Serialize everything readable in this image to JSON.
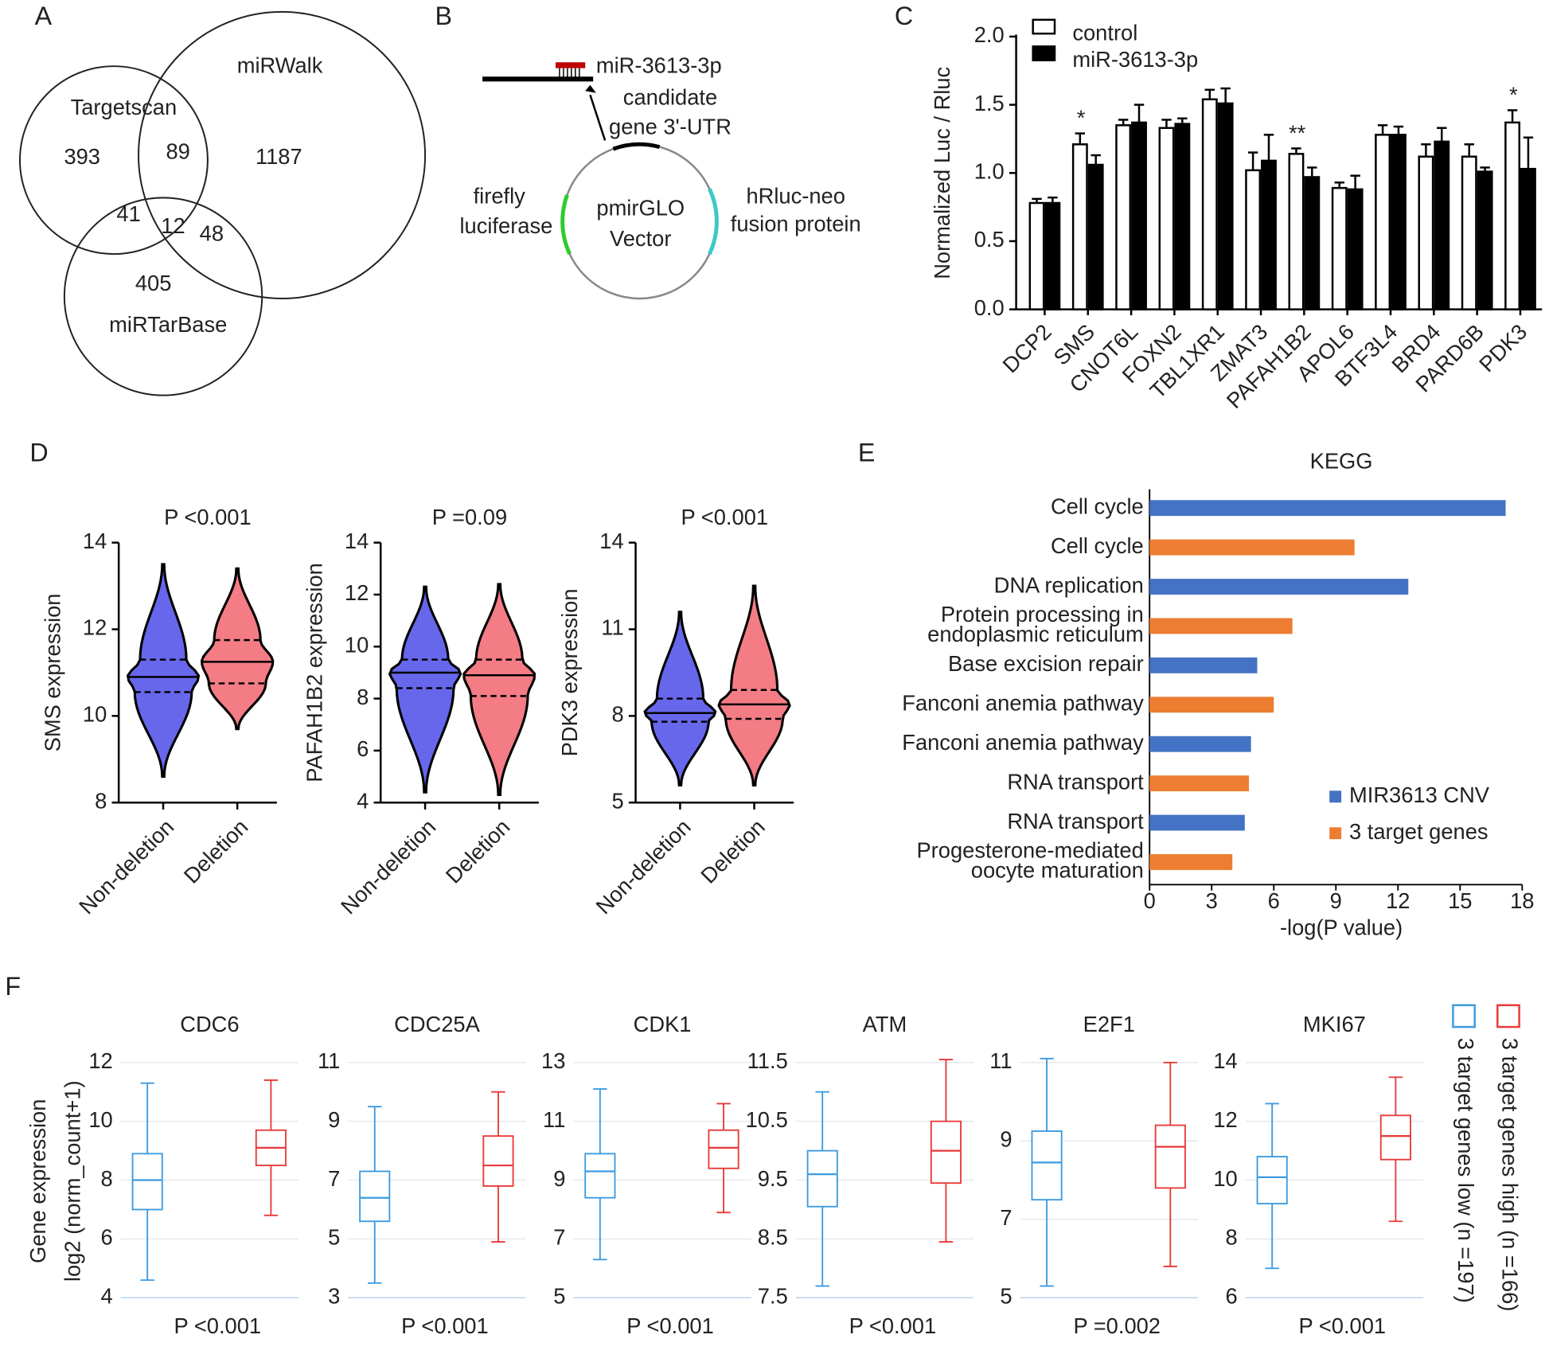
{
  "chart_data": [
    {
      "type": "venn",
      "panel": "A",
      "sets": [
        "Targetscan",
        "miRWalk",
        "miRTarBase"
      ],
      "values": [
        393,
        89,
        1187,
        41,
        12,
        48,
        405
      ]
    },
    {
      "type": "diagram",
      "panel": "B",
      "labels": [
        "miR-3613-3p",
        "candidate",
        "gene 3'-UTR",
        "firefly",
        "luciferase",
        "pmirGLO",
        "Vector",
        "hRluc-neo",
        "fusion protein"
      ]
    },
    {
      "type": "bar",
      "panel": "C",
      "ylabel": "Normalized Luc / Rluc",
      "categories": [
        "DCP2",
        "SMS",
        "CNOT6L",
        "FOXN2",
        "TBL1XR1",
        "ZMAT3",
        "PAFAH1B2",
        "APOL6",
        "BTF3L4",
        "BRD4",
        "PARD6B",
        "PDK3"
      ],
      "series": [
        {
          "name": "control",
          "color": "#ffffff",
          "values": [
            0.78,
            1.21,
            1.35,
            1.33,
            1.54,
            1.02,
            1.14,
            0.89,
            1.28,
            1.12,
            1.12,
            1.37
          ],
          "errors": [
            0.03,
            0.08,
            0.04,
            0.06,
            0.07,
            0.13,
            0.04,
            0.04,
            0.07,
            0.09,
            0.09,
            0.09
          ]
        },
        {
          "name": "miR-3613-3p",
          "color": "#000000",
          "values": [
            0.78,
            1.06,
            1.37,
            1.36,
            1.51,
            1.09,
            0.97,
            0.88,
            1.28,
            1.23,
            1.01,
            1.03
          ],
          "errors": [
            0.04,
            0.07,
            0.13,
            0.04,
            0.11,
            0.19,
            0.07,
            0.1,
            0.06,
            0.1,
            0.03,
            0.23
          ]
        }
      ],
      "ylim": [
        0,
        2
      ],
      "yticks": [
        {
          "value": 0,
          "label": "0.0"
        },
        {
          "value": 0.5,
          "label": "0.5"
        },
        {
          "value": 1,
          "label": "1.0"
        },
        {
          "value": 1.5,
          "label": "1.5"
        },
        {
          "value": 2,
          "label": "2.0"
        }
      ],
      "annotations": [
        {
          "x": "SMS",
          "text": "*"
        },
        {
          "x": "PAFAH1B2",
          "text": "**"
        },
        {
          "x": "PDK3",
          "text": "*"
        }
      ]
    },
    {
      "type": "violin",
      "panel": "D",
      "title": "P <0.001",
      "ylabel": "SMS expression",
      "categories": [
        "Non-deletion",
        "Deletion"
      ],
      "colors": [
        "#3434e6",
        "#f0505c"
      ],
      "values": [
        [
          8.6,
          10.55,
          10.9,
          11.3,
          13.5
        ],
        [
          9.7,
          10.75,
          11.25,
          11.75,
          13.4
        ]
      ],
      "ylim": [
        8,
        14
      ],
      "yticks": [
        8,
        10,
        12,
        14
      ]
    },
    {
      "type": "violin",
      "title": "P =0.09",
      "ylabel": "PAFAH1B2 expression",
      "categories": [
        "Non-deletion",
        "Deletion"
      ],
      "colors": [
        "#3434e6",
        "#f0505c"
      ],
      "values": [
        [
          4.4,
          8.4,
          9.0,
          9.5,
          12.3
        ],
        [
          4.3,
          8.1,
          8.9,
          9.5,
          12.4
        ]
      ],
      "ylim": [
        4,
        14
      ],
      "yticks": [
        4,
        6,
        8,
        10,
        12,
        14
      ]
    },
    {
      "type": "violin",
      "title": "P <0.001",
      "ylabel": "PDK3 expression",
      "categories": [
        "Non-deletion",
        "Deletion"
      ],
      "colors": [
        "#3434e6",
        "#f0505c"
      ],
      "values": [
        [
          5.6,
          7.8,
          8.1,
          8.6,
          11.6
        ],
        [
          5.6,
          7.9,
          8.4,
          8.9,
          12.5
        ]
      ],
      "ylim": [
        5,
        14
      ],
      "yticks": [
        5,
        8,
        11,
        14
      ]
    },
    {
      "type": "hbar",
      "panel": "E",
      "title": "KEGG",
      "xlabel": "-log(P value)",
      "categories": [
        "Cell cycle",
        "Cell cycle",
        "DNA replication",
        "Protein processing in\nendoplasmic reticulum",
        "Base excision repair",
        "Fanconi anemia pathway",
        "Fanconi anemia pathway",
        "RNA transport",
        "RNA transport",
        "Progesterone-mediated\noocyte maturation"
      ],
      "series": [
        {
          "name": "MIR3613 CNV",
          "color": "#4472c4",
          "values": [
            17.2,
            null,
            12.5,
            null,
            5.2,
            null,
            4.9,
            null,
            4.6,
            null
          ]
        },
        {
          "name": "3 target genes",
          "color": "#ed7d31",
          "values": [
            null,
            9.9,
            null,
            6.9,
            null,
            6.0,
            null,
            4.8,
            null,
            4.0
          ]
        }
      ],
      "xlim": [
        0,
        18
      ],
      "xticks": [
        0,
        3,
        6,
        9,
        12,
        15,
        18
      ],
      "legend": "lower right"
    },
    {
      "type": "box",
      "panel": "F",
      "ylabel": [
        "Gene expression",
        "log2 (norm_count+1)"
      ],
      "title": "CDC6",
      "subtitle": "P <0.001",
      "colors": [
        "#3d9be0",
        "#e83a3a"
      ],
      "values": [
        [
          4.6,
          7.0,
          8.0,
          8.9,
          11.3
        ],
        [
          6.8,
          8.5,
          9.1,
          9.7,
          11.4
        ]
      ],
      "ylim": [
        4,
        12
      ],
      "yticks": [
        4,
        6,
        8,
        10,
        12
      ],
      "grid": true
    },
    {
      "type": "box",
      "title": "CDC25A",
      "subtitle": "P <0.001",
      "colors": [
        "#3d9be0",
        "#e83a3a"
      ],
      "values": [
        [
          3.5,
          5.6,
          6.4,
          7.3,
          9.5
        ],
        [
          4.9,
          6.8,
          7.5,
          8.5,
          10.0
        ]
      ],
      "ylim": [
        3,
        11
      ],
      "yticks": [
        3,
        5,
        7,
        9,
        11
      ],
      "grid": true
    },
    {
      "type": "box",
      "title": "CDK1",
      "subtitle": "P <0.001",
      "colors": [
        "#3d9be0",
        "#e83a3a"
      ],
      "values": [
        [
          6.3,
          8.4,
          9.3,
          9.9,
          12.1
        ],
        [
          7.9,
          9.4,
          10.1,
          10.7,
          11.6
        ]
      ],
      "ylim": [
        5,
        13
      ],
      "yticks": [
        5,
        7,
        9,
        11,
        13
      ],
      "grid": true
    },
    {
      "type": "box",
      "title": "ATM",
      "subtitle": "P <0.001",
      "colors": [
        "#3d9be0",
        "#e83a3a"
      ],
      "values": [
        [
          7.7,
          9.05,
          9.6,
          10.0,
          11.0
        ],
        [
          8.45,
          9.45,
          10.0,
          10.5,
          11.55
        ]
      ],
      "ylim": [
        7.5,
        11.5
      ],
      "yticks": [
        7.5,
        8.5,
        9.5,
        10.5,
        11.5
      ],
      "grid": true
    },
    {
      "type": "box",
      "title": "E2F1",
      "subtitle": "P =0.002",
      "colors": [
        "#3d9be0",
        "#e83a3a"
      ],
      "values": [
        [
          5.3,
          7.5,
          8.45,
          9.25,
          11.1
        ],
        [
          5.8,
          7.8,
          8.85,
          9.4,
          11.0
        ]
      ],
      "ylim": [
        5,
        11
      ],
      "yticks": [
        5,
        7,
        9,
        11
      ],
      "grid": true
    },
    {
      "type": "box",
      "title": "MKI67",
      "subtitle": "P <0.001",
      "colors": [
        "#3d9be0",
        "#e83a3a"
      ],
      "values": [
        [
          7.0,
          9.2,
          10.1,
          10.8,
          12.6
        ],
        [
          8.6,
          10.7,
          11.5,
          12.2,
          13.5
        ]
      ],
      "ylim": [
        6,
        14
      ],
      "yticks": [
        6,
        8,
        10,
        12,
        14
      ],
      "grid": true,
      "series": [
        {
          "name": "3 target genes low (n =197)",
          "color": "#3d9be0"
        },
        {
          "name": "3 target genes high (n =166)",
          "color": "#e83a3a"
        }
      ]
    }
  ]
}
